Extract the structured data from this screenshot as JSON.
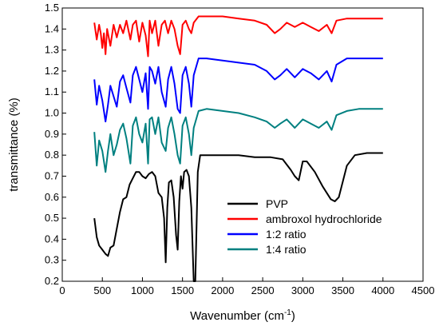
{
  "chart_data": {
    "type": "line",
    "title": "",
    "xlabel": "Wavenumber",
    "xlabel_unit_base": "(cm",
    "xlabel_unit_sup": "-1",
    "xlabel_unit_close": ")",
    "ylabel": "transmittance (%)",
    "xlim": [
      0,
      4500
    ],
    "ylim": [
      0.2,
      1.5
    ],
    "x_ticks": [
      0,
      500,
      1000,
      1500,
      2000,
      2500,
      3000,
      3500,
      4000,
      4500
    ],
    "y_ticks": [
      0.2,
      0.3,
      0.4,
      0.5,
      0.6,
      0.7,
      0.8,
      0.9,
      1.0,
      1.1,
      1.2,
      1.3,
      1.4,
      1.5
    ],
    "legend_position": "bottom-right",
    "grid": false,
    "series": [
      {
        "name": "PVP",
        "color": "#000000",
        "points": [
          [
            400,
            0.5
          ],
          [
            430,
            0.41
          ],
          [
            460,
            0.37
          ],
          [
            500,
            0.35
          ],
          [
            540,
            0.33
          ],
          [
            570,
            0.32
          ],
          [
            600,
            0.36
          ],
          [
            640,
            0.37
          ],
          [
            680,
            0.45
          ],
          [
            720,
            0.53
          ],
          [
            760,
            0.59
          ],
          [
            800,
            0.6
          ],
          [
            840,
            0.66
          ],
          [
            880,
            0.69
          ],
          [
            920,
            0.72
          ],
          [
            960,
            0.72
          ],
          [
            1000,
            0.7
          ],
          [
            1040,
            0.69
          ],
          [
            1080,
            0.71
          ],
          [
            1120,
            0.72
          ],
          [
            1160,
            0.7
          ],
          [
            1200,
            0.62
          ],
          [
            1240,
            0.6
          ],
          [
            1270,
            0.5
          ],
          [
            1290,
            0.29
          ],
          [
            1310,
            0.55
          ],
          [
            1330,
            0.67
          ],
          [
            1360,
            0.68
          ],
          [
            1390,
            0.6
          ],
          [
            1420,
            0.42
          ],
          [
            1440,
            0.35
          ],
          [
            1460,
            0.58
          ],
          [
            1480,
            0.7
          ],
          [
            1500,
            0.64
          ],
          [
            1520,
            0.72
          ],
          [
            1550,
            0.73
          ],
          [
            1580,
            0.7
          ],
          [
            1610,
            0.55
          ],
          [
            1640,
            0.2
          ],
          [
            1660,
            0.2
          ],
          [
            1690,
            0.72
          ],
          [
            1720,
            0.8
          ],
          [
            1800,
            0.8
          ],
          [
            2000,
            0.8
          ],
          [
            2200,
            0.8
          ],
          [
            2400,
            0.79
          ],
          [
            2600,
            0.79
          ],
          [
            2750,
            0.78
          ],
          [
            2850,
            0.73
          ],
          [
            2900,
            0.7
          ],
          [
            2950,
            0.68
          ],
          [
            3000,
            0.77
          ],
          [
            3050,
            0.77
          ],
          [
            3150,
            0.72
          ],
          [
            3250,
            0.65
          ],
          [
            3350,
            0.59
          ],
          [
            3400,
            0.58
          ],
          [
            3450,
            0.6
          ],
          [
            3550,
            0.75
          ],
          [
            3650,
            0.8
          ],
          [
            3800,
            0.81
          ],
          [
            4000,
            0.81
          ]
        ]
      },
      {
        "name": "ambroxol hydrochloride",
        "color": "#ff0000",
        "points": [
          [
            400,
            1.43
          ],
          [
            430,
            1.35
          ],
          [
            460,
            1.42
          ],
          [
            480,
            1.38
          ],
          [
            500,
            1.31
          ],
          [
            520,
            1.38
          ],
          [
            540,
            1.28
          ],
          [
            560,
            1.4
          ],
          [
            600,
            1.32
          ],
          [
            640,
            1.42
          ],
          [
            680,
            1.36
          ],
          [
            720,
            1.42
          ],
          [
            760,
            1.38
          ],
          [
            800,
            1.44
          ],
          [
            850,
            1.35
          ],
          [
            880,
            1.42
          ],
          [
            920,
            1.44
          ],
          [
            960,
            1.34
          ],
          [
            1000,
            1.43
          ],
          [
            1040,
            1.37
          ],
          [
            1070,
            1.27
          ],
          [
            1090,
            1.44
          ],
          [
            1120,
            1.38
          ],
          [
            1160,
            1.44
          ],
          [
            1200,
            1.32
          ],
          [
            1240,
            1.42
          ],
          [
            1280,
            1.44
          ],
          [
            1320,
            1.38
          ],
          [
            1360,
            1.44
          ],
          [
            1400,
            1.4
          ],
          [
            1440,
            1.32
          ],
          [
            1470,
            1.28
          ],
          [
            1500,
            1.42
          ],
          [
            1540,
            1.44
          ],
          [
            1580,
            1.4
          ],
          [
            1610,
            1.38
          ],
          [
            1640,
            1.43
          ],
          [
            1700,
            1.46
          ],
          [
            1800,
            1.46
          ],
          [
            2000,
            1.46
          ],
          [
            2200,
            1.45
          ],
          [
            2400,
            1.44
          ],
          [
            2550,
            1.42
          ],
          [
            2650,
            1.38
          ],
          [
            2720,
            1.4
          ],
          [
            2800,
            1.43
          ],
          [
            2900,
            1.41
          ],
          [
            3000,
            1.43
          ],
          [
            3100,
            1.41
          ],
          [
            3200,
            1.39
          ],
          [
            3300,
            1.42
          ],
          [
            3360,
            1.38
          ],
          [
            3420,
            1.44
          ],
          [
            3550,
            1.45
          ],
          [
            3700,
            1.45
          ],
          [
            4000,
            1.45
          ]
        ]
      },
      {
        "name": "1:2 ratio",
        "color": "#0000ff",
        "points": [
          [
            400,
            1.16
          ],
          [
            430,
            1.04
          ],
          [
            460,
            1.13
          ],
          [
            500,
            1.06
          ],
          [
            540,
            0.96
          ],
          [
            570,
            1.04
          ],
          [
            600,
            1.13
          ],
          [
            640,
            1.08
          ],
          [
            680,
            1.03
          ],
          [
            720,
            1.15
          ],
          [
            760,
            1.18
          ],
          [
            800,
            1.12
          ],
          [
            850,
            1.05
          ],
          [
            880,
            1.18
          ],
          [
            920,
            1.22
          ],
          [
            960,
            1.16
          ],
          [
            1000,
            1.1
          ],
          [
            1040,
            1.19
          ],
          [
            1070,
            1.02
          ],
          [
            1090,
            1.22
          ],
          [
            1120,
            1.2
          ],
          [
            1160,
            1.14
          ],
          [
            1200,
            1.22
          ],
          [
            1240,
            1.1
          ],
          [
            1290,
            1.03
          ],
          [
            1320,
            1.16
          ],
          [
            1360,
            1.22
          ],
          [
            1400,
            1.14
          ],
          [
            1440,
            1.02
          ],
          [
            1470,
            1.0
          ],
          [
            1500,
            1.18
          ],
          [
            1540,
            1.22
          ],
          [
            1580,
            1.14
          ],
          [
            1610,
            1.03
          ],
          [
            1640,
            1.18
          ],
          [
            1700,
            1.26
          ],
          [
            1800,
            1.26
          ],
          [
            2000,
            1.25
          ],
          [
            2200,
            1.24
          ],
          [
            2400,
            1.23
          ],
          [
            2550,
            1.2
          ],
          [
            2650,
            1.16
          ],
          [
            2720,
            1.18
          ],
          [
            2800,
            1.21
          ],
          [
            2900,
            1.17
          ],
          [
            3000,
            1.21
          ],
          [
            3100,
            1.19
          ],
          [
            3200,
            1.16
          ],
          [
            3300,
            1.2
          ],
          [
            3360,
            1.15
          ],
          [
            3420,
            1.23
          ],
          [
            3550,
            1.26
          ],
          [
            3700,
            1.26
          ],
          [
            4000,
            1.26
          ]
        ]
      },
      {
        "name": "1:4 ratio",
        "color": "#008080",
        "points": [
          [
            400,
            0.91
          ],
          [
            430,
            0.75
          ],
          [
            460,
            0.87
          ],
          [
            500,
            0.82
          ],
          [
            540,
            0.72
          ],
          [
            570,
            0.82
          ],
          [
            600,
            0.9
          ],
          [
            640,
            0.8
          ],
          [
            680,
            0.85
          ],
          [
            720,
            0.92
          ],
          [
            760,
            0.95
          ],
          [
            800,
            0.88
          ],
          [
            850,
            0.76
          ],
          [
            880,
            0.94
          ],
          [
            920,
            0.98
          ],
          [
            960,
            0.9
          ],
          [
            1000,
            0.86
          ],
          [
            1040,
            0.95
          ],
          [
            1070,
            0.76
          ],
          [
            1090,
            0.97
          ],
          [
            1120,
            0.98
          ],
          [
            1160,
            0.9
          ],
          [
            1200,
            0.98
          ],
          [
            1240,
            0.86
          ],
          [
            1290,
            0.82
          ],
          [
            1320,
            0.93
          ],
          [
            1360,
            0.98
          ],
          [
            1400,
            0.9
          ],
          [
            1440,
            0.8
          ],
          [
            1470,
            0.76
          ],
          [
            1500,
            0.94
          ],
          [
            1540,
            0.98
          ],
          [
            1580,
            0.9
          ],
          [
            1610,
            0.8
          ],
          [
            1640,
            0.93
          ],
          [
            1700,
            1.01
          ],
          [
            1800,
            1.02
          ],
          [
            2000,
            1.01
          ],
          [
            2200,
            1.0
          ],
          [
            2400,
            0.98
          ],
          [
            2550,
            0.96
          ],
          [
            2650,
            0.93
          ],
          [
            2720,
            0.95
          ],
          [
            2800,
            0.97
          ],
          [
            2900,
            0.93
          ],
          [
            3000,
            0.97
          ],
          [
            3100,
            0.95
          ],
          [
            3200,
            0.93
          ],
          [
            3300,
            0.96
          ],
          [
            3360,
            0.92
          ],
          [
            3420,
            0.99
          ],
          [
            3550,
            1.01
          ],
          [
            3700,
            1.02
          ],
          [
            4000,
            1.02
          ]
        ]
      }
    ]
  }
}
